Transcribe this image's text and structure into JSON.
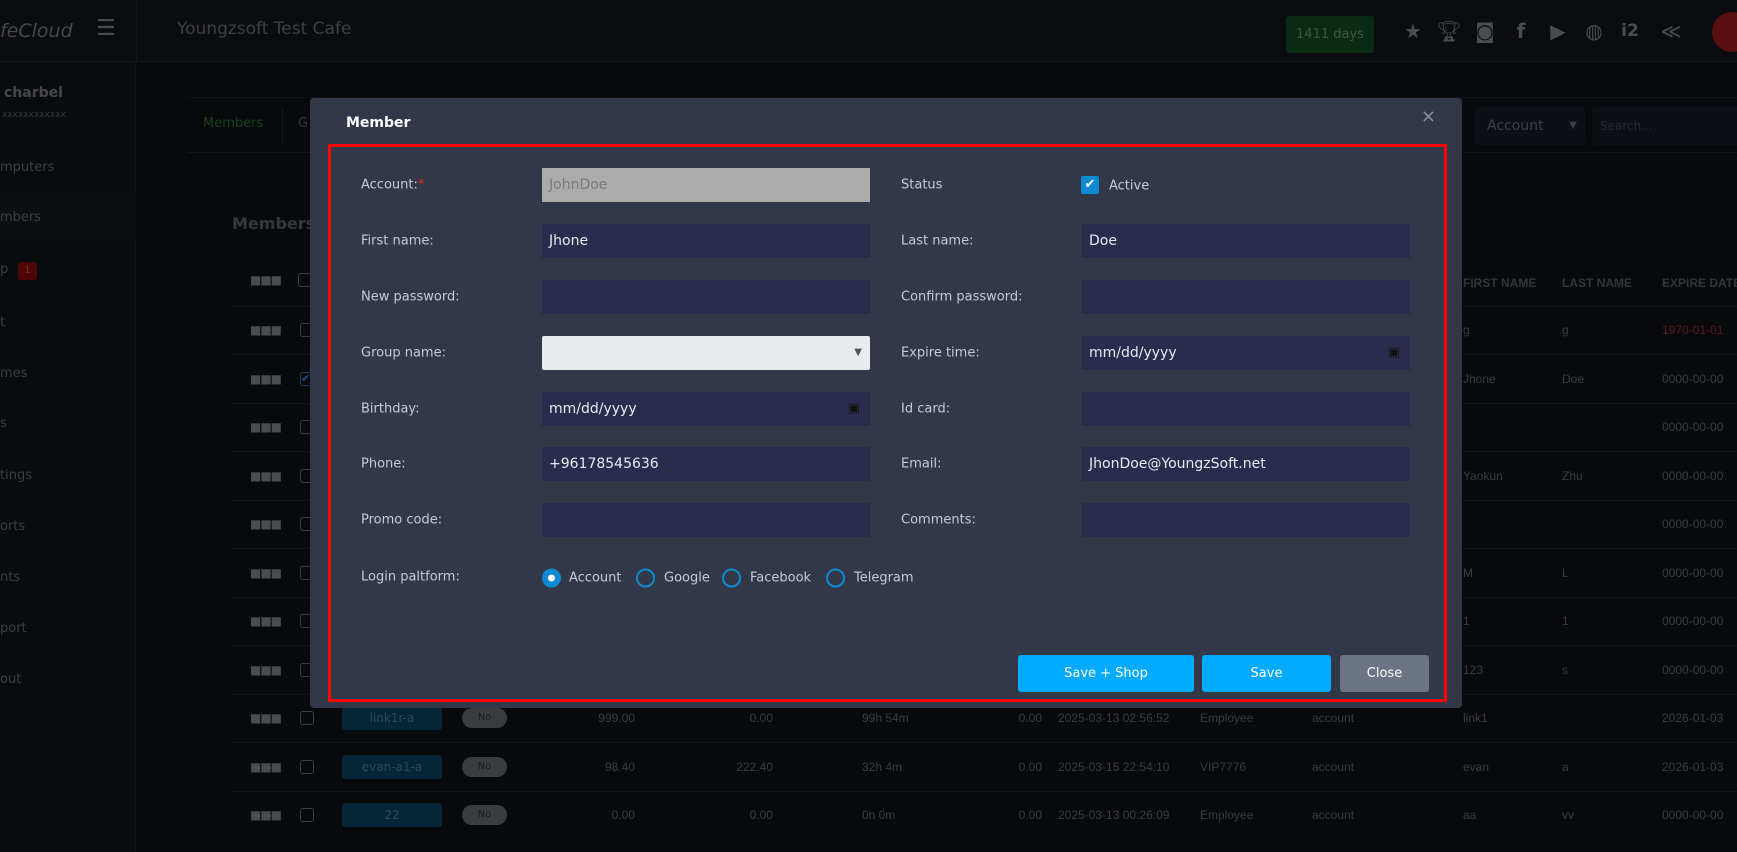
{
  "topbar": {
    "logo": "feCloud",
    "cafe_name": "Youngzsoft Test Cafe",
    "days_badge": "1411 days",
    "icons": [
      "ranking-icon",
      "trophy-icon",
      "discord-icon",
      "facebook-icon",
      "youtube-icon",
      "globe-icon",
      "i2-icon",
      "brand-logo-icon"
    ]
  },
  "sidebar": {
    "user_name": "charbel",
    "user_sub": "xxxxxxxxxxxx",
    "items": [
      {
        "label": "mputers"
      },
      {
        "label": "mbers"
      },
      {
        "label": "p",
        "badge": "1"
      },
      {
        "label": "t"
      },
      {
        "label": "mes"
      },
      {
        "label": "s"
      },
      {
        "label": "tings"
      },
      {
        "label": "orts"
      },
      {
        "label": "nts"
      },
      {
        "label": "port"
      },
      {
        "label": "out"
      }
    ]
  },
  "page": {
    "tabs": [
      "Members",
      "G"
    ],
    "filter_select": "Account",
    "search_placeholder": "Search...",
    "heading": "Members",
    "table": {
      "headers": {
        "first_name": "FIRST NAME",
        "last_name": "LAST NAME",
        "expire_date": "EXPIRE DATE"
      },
      "rows": [
        {
          "checked": false,
          "first": "g",
          "last": "g",
          "expire": "1970-01-01",
          "expired": true
        },
        {
          "checked": true,
          "first": "Jhone",
          "last": "Doe",
          "expire": "0000-00-00"
        },
        {
          "checked": false,
          "first": "",
          "last": "",
          "expire": "0000-00-00"
        },
        {
          "checked": false,
          "first": "Yaokun",
          "last": "Zhu",
          "expire": "0000-00-00"
        },
        {
          "checked": false,
          "first": "",
          "last": "",
          "expire": "0000-00-00"
        },
        {
          "checked": false,
          "first": "M",
          "last": "L",
          "expire": "0000-00-00"
        },
        {
          "checked": false,
          "first": "1",
          "last": "1",
          "expire": "0000-00-00"
        },
        {
          "checked": false,
          "first": "123",
          "last": "s",
          "expire": "0000-00-00"
        },
        {
          "checked": false,
          "account": "link1r-a",
          "online": "No",
          "balance": "999.00",
          "bonus": "0.00",
          "time": "99h 54m",
          "debt": "0.00",
          "created": "2025-03-13 02:56:52",
          "group": "Employee",
          "platform": "account",
          "first": "link1",
          "last": "",
          "expire": "2026-01-03"
        },
        {
          "checked": false,
          "account": "evan-a1-a",
          "online": "No",
          "balance": "98.40",
          "bonus": "222.40",
          "time": "32h 4m",
          "debt": "0.00",
          "created": "2025-03-15 22:54:10",
          "group": "VIP7776",
          "platform": "account",
          "first": "evan",
          "last": "a",
          "expire": "2026-01-03"
        },
        {
          "checked": false,
          "account": "22",
          "online": "No",
          "balance": "0.00",
          "bonus": "0.00",
          "time": "0h 0m",
          "debt": "0.00",
          "created": "2025-03-13 00:26:09",
          "group": "Employee",
          "platform": "account",
          "first": "aa",
          "last": "vv",
          "expire": "0000-00-00"
        }
      ]
    }
  },
  "modal": {
    "title": "Member",
    "close": "×",
    "fields": {
      "account": {
        "label": "Account:",
        "required": "*",
        "value": "JohnDoe"
      },
      "status": {
        "label": "Status",
        "checkbox_label": "Active",
        "checked": true
      },
      "first_name": {
        "label": "First name:",
        "value": "Jhone"
      },
      "last_name": {
        "label": "Last name:",
        "value": "Doe"
      },
      "new_password": {
        "label": "New password:",
        "value": ""
      },
      "confirm_password": {
        "label": "Confirm password:",
        "value": ""
      },
      "group_name": {
        "label": "Group name:",
        "value": ""
      },
      "expire_time": {
        "label": "Expire time:",
        "placeholder": "mm/dd/yyyy"
      },
      "birthday": {
        "label": "Birthday:",
        "placeholder": "mm/dd/yyyy"
      },
      "id_card": {
        "label": "Id card:",
        "value": ""
      },
      "phone": {
        "label": "Phone:",
        "value": "+96178545636"
      },
      "email": {
        "label": "Email:",
        "value": "JhonDoe@YoungzSoft.net"
      },
      "promo_code": {
        "label": "Promo code:",
        "value": ""
      },
      "comments": {
        "label": "Comments:",
        "value": ""
      },
      "login_platform": {
        "label": "Login paltform:",
        "options": [
          "Account",
          "Google",
          "Facebook",
          "Telegram"
        ],
        "selected": "Account"
      }
    },
    "buttons": {
      "save_shop": "Save + Shop",
      "save": "Save",
      "close": "Close"
    },
    "colors": {
      "primary": "#00aaff",
      "secondary": "#6c7385",
      "highlight": "#ff0000",
      "input_bg": "#2a2c4e"
    }
  }
}
